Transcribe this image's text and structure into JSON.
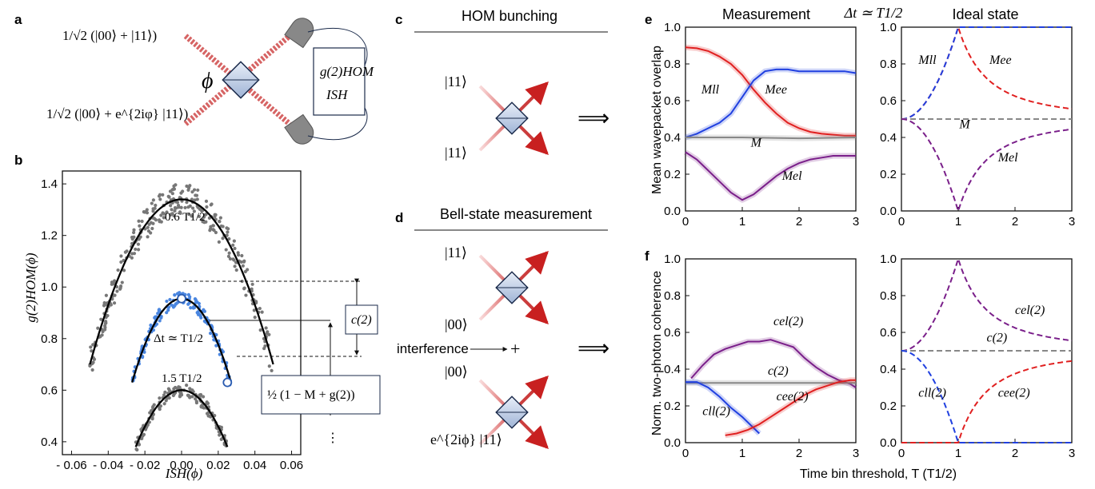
{
  "panel_labels": {
    "a": "a",
    "b": "b",
    "c": "c",
    "d": "d",
    "e": "e",
    "f": "f"
  },
  "panel_a": {
    "state_top": "1/√2 (|00⟩ + |11⟩)",
    "state_bottom": "1/√2 (|00⟩ + e^{2iφ} |11⟩)",
    "phase_label": "ϕ",
    "box_line1": "g(2)HOM",
    "box_line2": "ISH"
  },
  "panel_b": {
    "ylabel": "g(2)HOM(ϕ)",
    "xlabel": "ISH(ϕ)",
    "ann_06": "0.6 T1/2",
    "ann_dt": "Δt ≃ T1/2",
    "ann_15": "1.5 T1/2",
    "c2_label": "c(2)",
    "formula": "½ (1 − M + g(2))",
    "ellipsis": "⋮"
  },
  "panel_c": {
    "title": "HOM bunching",
    "in_top": "|11⟩",
    "in_bottom": "|11⟩"
  },
  "panel_d": {
    "title": "Bell-state measurement",
    "top_in1": "|11⟩",
    "top_in2": "|00⟩",
    "interference": "interference",
    "plus": "+",
    "bot_in1": "|00⟩",
    "bot_in2": "e^{2iϕ} |11⟩"
  },
  "header": {
    "measurement": "Measurement",
    "dt": "Δt ≃ T1/2",
    "ideal": "Ideal state"
  },
  "shared_xlabel": "Time bin threshold, T (T1/2)",
  "panel_e": {
    "ylabel": "Mean wavepacket overlap"
  },
  "panel_f": {
    "ylabel": "Norm. two-photon coherence"
  },
  "chart_data": [
    {
      "id": "b",
      "type": "scatter",
      "xlabel": "ISH(ϕ)",
      "ylabel": "g(2)HOM(ϕ)",
      "xlim": [
        -0.065,
        0.065
      ],
      "ylim": [
        0.35,
        1.45
      ],
      "xticks": [
        -0.06,
        -0.04,
        -0.02,
        0,
        0.02,
        0.04,
        0.06
      ],
      "xticklabels": [
        "- 0.06",
        "- 0.04",
        "- 0.02",
        "0.00",
        "0.02",
        "0.04",
        "0.06"
      ],
      "yticks": [
        0.4,
        0.6,
        0.8,
        1.0,
        1.2,
        1.4
      ],
      "yticklabels": [
        "0.4",
        "0.6",
        "0.8",
        "1.0",
        "1.2",
        "1.4"
      ],
      "series": [
        {
          "fit": {
            "center": 0.0,
            "amp": 1.34,
            "half_width": 0.05,
            "end": 0.7
          },
          "color": "#777777",
          "spread": 0.06,
          "n": 300
        },
        {
          "fit": {
            "center": 0.0,
            "amp": 0.955,
            "half_width": 0.027,
            "end": 0.63
          },
          "color": "#4a86e0",
          "spread": 0.025,
          "n": 170
        },
        {
          "fit": {
            "center": 0.0,
            "amp": 0.6,
            "half_width": 0.025,
            "end": 0.38
          },
          "color": "#777777",
          "spread": 0.025,
          "n": 150
        }
      ],
      "markers": [
        {
          "x": 0.0,
          "y": 0.955
        },
        {
          "x": 0.025,
          "y": 0.63
        }
      ]
    },
    {
      "id": "e-measurement",
      "type": "line",
      "xlim": [
        0,
        3
      ],
      "ylim": [
        0,
        1
      ],
      "xticks": [
        0,
        1,
        2,
        3
      ],
      "yticks": [
        0,
        0.2,
        0.4,
        0.6,
        0.8,
        1.0
      ],
      "yticklabels": [
        "0.0",
        "0.2",
        "0.4",
        "0.6",
        "0.8",
        "1.0"
      ],
      "series": [
        {
          "name": "Mee",
          "color": "#e02020",
          "x": [
            0,
            0.2,
            0.4,
            0.6,
            0.8,
            1.0,
            1.2,
            1.4,
            1.6,
            1.8,
            2.0,
            2.2,
            2.4,
            2.6,
            2.8,
            3.0
          ],
          "y": [
            0.89,
            0.885,
            0.87,
            0.84,
            0.8,
            0.74,
            0.66,
            0.59,
            0.53,
            0.48,
            0.45,
            0.43,
            0.42,
            0.415,
            0.41,
            0.41
          ]
        },
        {
          "name": "Mll",
          "color": "#2040e0",
          "x": [
            0,
            0.2,
            0.4,
            0.6,
            0.8,
            1.0,
            1.2,
            1.4,
            1.6,
            1.8,
            2.0,
            2.2,
            2.4,
            2.6,
            2.8,
            3.0
          ],
          "y": [
            0.4,
            0.42,
            0.45,
            0.48,
            0.53,
            0.62,
            0.71,
            0.76,
            0.77,
            0.77,
            0.76,
            0.76,
            0.76,
            0.76,
            0.76,
            0.75
          ]
        },
        {
          "name": "M",
          "color": "#888888",
          "x": [
            0,
            1,
            2,
            3
          ],
          "y": [
            0.4,
            0.4,
            0.395,
            0.4
          ]
        },
        {
          "name": "Mel",
          "color": "#7a1f8a",
          "x": [
            0,
            0.2,
            0.4,
            0.6,
            0.8,
            1.0,
            1.2,
            1.4,
            1.6,
            1.8,
            2.0,
            2.2,
            2.4,
            2.6,
            2.8,
            3.0
          ],
          "y": [
            0.32,
            0.28,
            0.22,
            0.16,
            0.1,
            0.06,
            0.09,
            0.14,
            0.19,
            0.23,
            0.26,
            0.28,
            0.29,
            0.3,
            0.3,
            0.3
          ]
        }
      ],
      "labels": [
        {
          "text": "Mll",
          "x": 0.28,
          "y": 0.64
        },
        {
          "text": "Mee",
          "x": 1.4,
          "y": 0.64
        },
        {
          "text": "M",
          "x": 1.15,
          "y": 0.35
        },
        {
          "text": "Mel",
          "x": 1.7,
          "y": 0.17
        }
      ]
    },
    {
      "id": "e-ideal",
      "type": "line",
      "xlim": [
        0,
        3
      ],
      "ylim": [
        0,
        1
      ],
      "xticks": [
        0,
        1,
        2,
        3
      ],
      "yticks": [
        0,
        0.2,
        0.4,
        0.6,
        0.8,
        1.0
      ],
      "yticklabels": [
        "0.0",
        "0.2",
        "0.4",
        "0.6",
        "0.8",
        "1.0"
      ],
      "series": [
        {
          "name": "Mee",
          "color": "#e02020",
          "dashed": true,
          "formula": "ideal_Mee"
        },
        {
          "name": "Mll",
          "color": "#2040e0",
          "dashed": true,
          "formula": "ideal_Mll"
        },
        {
          "name": "M",
          "color": "#888888",
          "dashed": true,
          "formula": "const_0.5"
        },
        {
          "name": "Mel",
          "color": "#7a1f8a",
          "dashed": true,
          "formula": "ideal_Mel"
        }
      ],
      "labels": [
        {
          "text": "Mll",
          "x": 0.3,
          "y": 0.8
        },
        {
          "text": "Mee",
          "x": 1.55,
          "y": 0.8
        },
        {
          "text": "M",
          "x": 1.02,
          "y": 0.45
        },
        {
          "text": "Mel",
          "x": 1.7,
          "y": 0.27
        }
      ]
    },
    {
      "id": "f-measurement",
      "type": "line",
      "xlim": [
        0,
        3
      ],
      "ylim": [
        0,
        1
      ],
      "xticks": [
        0,
        1,
        2,
        3
      ],
      "yticks": [
        0,
        0.2,
        0.4,
        0.6,
        0.8,
        1.0
      ],
      "yticklabels": [
        "0.0",
        "0.2",
        "0.4",
        "0.6",
        "0.8",
        "1.0"
      ],
      "series": [
        {
          "name": "cel(2)",
          "color": "#7a1f8a",
          "x": [
            0.1,
            0.3,
            0.5,
            0.7,
            0.9,
            1.1,
            1.3,
            1.5,
            1.7,
            1.9,
            2.1,
            2.3,
            2.5,
            2.7,
            2.9,
            3.0
          ],
          "y": [
            0.35,
            0.42,
            0.48,
            0.51,
            0.53,
            0.55,
            0.55,
            0.56,
            0.54,
            0.52,
            0.46,
            0.41,
            0.37,
            0.34,
            0.32,
            0.3
          ]
        },
        {
          "name": "c(2)",
          "color": "#888888",
          "x": [
            0,
            1,
            2,
            3
          ],
          "y": [
            0.325,
            0.325,
            0.325,
            0.325
          ]
        },
        {
          "name": "cll(2)",
          "color": "#2040e0",
          "x": [
            0,
            0.2,
            0.4,
            0.6,
            0.8,
            1.0,
            1.2,
            1.3
          ],
          "y": [
            0.33,
            0.33,
            0.3,
            0.25,
            0.19,
            0.14,
            0.08,
            0.05
          ]
        },
        {
          "name": "cee(2)",
          "color": "#e02020",
          "x": [
            0.7,
            0.9,
            1.1,
            1.3,
            1.5,
            1.7,
            1.9,
            2.1,
            2.3,
            2.5,
            2.7,
            2.9,
            3.0
          ],
          "y": [
            0.04,
            0.05,
            0.07,
            0.1,
            0.14,
            0.18,
            0.22,
            0.26,
            0.29,
            0.31,
            0.33,
            0.34,
            0.34
          ]
        }
      ],
      "labels": [
        {
          "text": "cel(2)",
          "x": 1.55,
          "y": 0.64
        },
        {
          "text": "c(2)",
          "x": 1.45,
          "y": 0.37
        },
        {
          "text": "cll(2)",
          "x": 0.3,
          "y": 0.15
        },
        {
          "text": "cee(2)",
          "x": 1.6,
          "y": 0.23
        }
      ]
    },
    {
      "id": "f-ideal",
      "type": "line",
      "xlim": [
        0,
        3
      ],
      "ylim": [
        0,
        1
      ],
      "xticks": [
        0,
        1,
        2,
        3
      ],
      "yticks": [
        0,
        0.2,
        0.4,
        0.6,
        0.8,
        1.0
      ],
      "yticklabels": [
        "0.0",
        "0.2",
        "0.4",
        "0.6",
        "0.8",
        "1.0"
      ],
      "series": [
        {
          "name": "cel(2)",
          "color": "#7a1f8a",
          "dashed": true,
          "formula": "ideal_cel"
        },
        {
          "name": "c(2)",
          "color": "#888888",
          "dashed": true,
          "formula": "const_0.5"
        },
        {
          "name": "cll(2)",
          "color": "#2040e0",
          "dashed": true,
          "formula": "ideal_cll"
        },
        {
          "name": "cee(2)",
          "color": "#e02020",
          "dashed": true,
          "formula": "ideal_cee"
        }
      ],
      "labels": [
        {
          "text": "cel(2)",
          "x": 2.0,
          "y": 0.7
        },
        {
          "text": "c(2)",
          "x": 1.5,
          "y": 0.55
        },
        {
          "text": "cll(2)",
          "x": 0.3,
          "y": 0.25
        },
        {
          "text": "cee(2)",
          "x": 1.7,
          "y": 0.25
        }
      ]
    }
  ]
}
